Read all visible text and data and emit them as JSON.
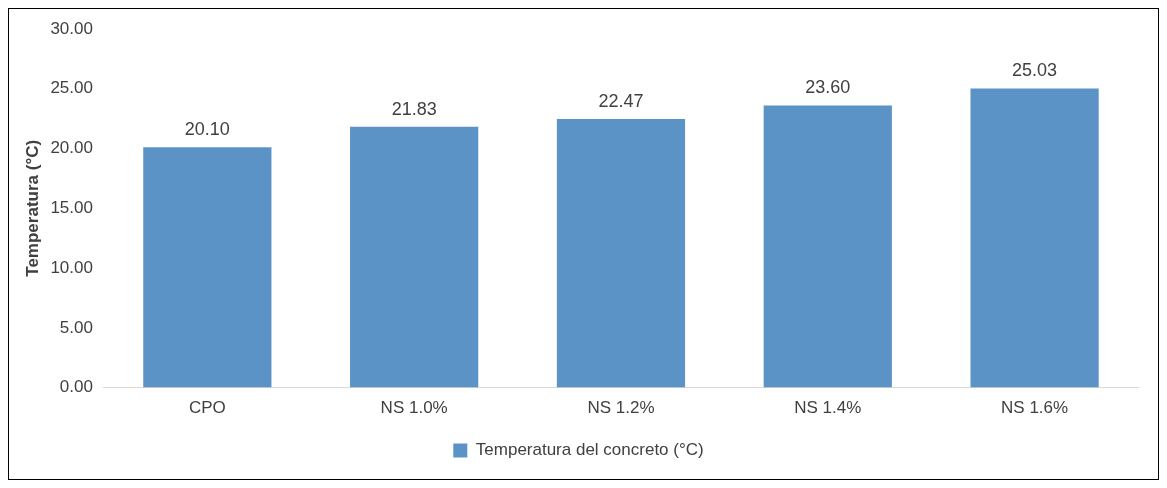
{
  "chart_data": {
    "type": "bar",
    "ylabel": "Temperatura (°C)",
    "categories": [
      "CPO",
      "NS 1.0%",
      "NS 1.2%",
      "NS 1.4%",
      "NS 1.6%"
    ],
    "series": [
      {
        "name": "Temperatura del concreto (°C)",
        "color": "#5b93c7",
        "values": [
          20.1,
          21.83,
          22.47,
          23.6,
          25.03
        ],
        "value_labels": [
          "20.10",
          "21.83",
          "22.47",
          "23.60",
          "25.03"
        ]
      }
    ],
    "ylim": [
      0,
      30
    ],
    "yticks": [
      {
        "value": 0,
        "label": "0.00"
      },
      {
        "value": 5,
        "label": "5.00"
      },
      {
        "value": 10,
        "label": "10.00"
      },
      {
        "value": 15,
        "label": "15.00"
      },
      {
        "value": 20,
        "label": "20.00"
      },
      {
        "value": 25,
        "label": "25.00"
      },
      {
        "value": 30,
        "label": "30.00"
      }
    ],
    "grid": false,
    "legend": "bottom"
  }
}
